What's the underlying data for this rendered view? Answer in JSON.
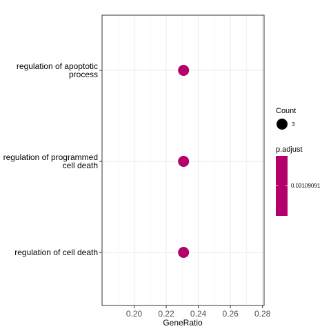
{
  "chart_data": {
    "type": "scatter",
    "xlabel": "GeneRatio",
    "ylabel": "",
    "xlim": [
      0.18,
      0.281
    ],
    "xticks": [
      0.2,
      0.22,
      0.24,
      0.26,
      0.28
    ],
    "xtick_labels": [
      "0.20",
      "0.22",
      "0.24",
      "0.26",
      "0.28"
    ],
    "grid": true,
    "point_color": "#B3006B",
    "categories": [
      [
        "regulation of apoptotic",
        "process"
      ],
      [
        "regulation of programmed",
        "cell death"
      ],
      [
        "regulation of cell death"
      ]
    ],
    "points": [
      {
        "term": "regulation of apoptotic process",
        "x": 0.2308,
        "count": 3,
        "p_adjust": 0.03109091
      },
      {
        "term": "regulation of programmed cell death",
        "x": 0.2308,
        "count": 3,
        "p_adjust": 0.03109091
      },
      {
        "term": "regulation of cell death",
        "x": 0.2308,
        "count": 3,
        "p_adjust": 0.03109091
      }
    ],
    "legend": {
      "placement": "right",
      "size_title": "Count",
      "size_label": "3",
      "color_title": "p.adjust",
      "color_label": "0.03109091",
      "color_fill": "#B3006B"
    }
  }
}
